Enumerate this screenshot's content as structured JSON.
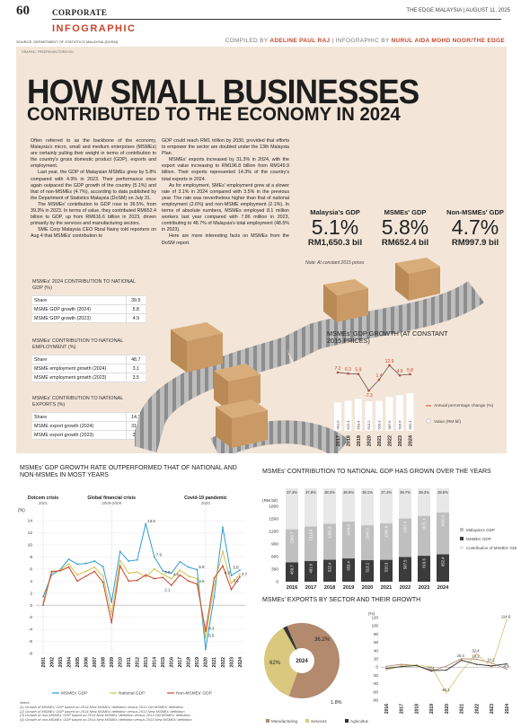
{
  "header": {
    "page_number": "60",
    "section": "CORPORATE",
    "publication": "THE EDGE MALAYSIA | AUGUST 11, 2025",
    "infographic_tag": "INFOGRAPHIC",
    "source": "SOURCE: DEPARTMENT OF STATISTICS MALAYSIA (DOSM)",
    "credit_prefix": "COMPILED BY",
    "credit_author": "ADELINE PAUL RAJ",
    "credit_mid": "| INFOGRAPHIC BY",
    "credit_designer": "NURUL AIDA MOHD NOOR/THE EDGE",
    "graphic_credit": "GRAPHIC: FREEPIK/VECTOR4YOU"
  },
  "title": {
    "line1": "HOW SMALL BUSINESSES",
    "line2": "CONTRIBUTED TO THE ECONOMY IN 2024"
  },
  "body": {
    "col1": [
      "Often referred to as the backbone of the economy, Malaysia's micro, small and medium enterprises (MSMEs) are certainly pulling their weight in terms of contribution to the country's gross domestic product (GDP), exports and employment.",
      "Last year, the GDP of Malaysian MSMEs grew by 5.8% compared with 4.9% in 2023. Their performance once again outpaced the GDP growth of the country (5.1%) and that of non-MSMEs (4.7%), according to data published by the Department of Statistics Malaysia (DoSM) on July 31.",
      "The MSMEs' contribution to GDP rose to 39.5%, from 39.3% in 2023. In terms of value, they contributed RM652.4 billion to GDP, up from RM616.6 billion in 2023, driven primarily by the services and manufacturing sectors.",
      "SME Corp Malaysia CEO Rizal Nainy told reporters on Aug 4 that MSMEs' contribution to"
    ],
    "col2": [
      "GDP could reach RM1 trillion by 2030, provided that efforts to empower the sector are doubled under the 13th Malaysia Plan.",
      "MSMEs' exports increased by 31.3% in 2024, with the export value increasing to RM196.8 billion from RM149.9 billion. Their exports represented 14.3% of the country's total exports in 2024.",
      "As for employment, SMEs' employment grew at a slower rate of 3.1% in 2024 compared with 3.5% in the previous year. The rate was nevertheless higher than that of national employment (2.6%) and non-MSME employment (2.1%). In terms of absolute numbers, MSMEs employed 8.1 million workers last year compared with 7.86 million in 2023, contributing to 48.7% of Malaysia's total employment (48.5% in 2023).",
      "Here are more interesting facts on MSMEs from the DoSM report."
    ]
  },
  "gdp_boxes": [
    {
      "label": "Malaysia's GDP",
      "pct": "5.1%",
      "amount": "RM1,650.3 bil"
    },
    {
      "label": "MSMEs' GDP",
      "pct": "5.8%",
      "amount": "RM652.4 bil"
    },
    {
      "label": "Non-MSMEs' GDP",
      "pct": "4.7%",
      "amount": "RM997.9 bil"
    }
  ],
  "gdp_note": "Note: At constant 2015 prices",
  "tables": [
    {
      "title": "MSMEs' 2024 CONTRIBUTION TO NATIONAL GDP (%)",
      "rows": [
        [
          "Share",
          "39.5"
        ],
        [
          "MSME GDP growth (2024)",
          "5.8"
        ],
        [
          "MSME GDP growth (2023)",
          "4.9"
        ]
      ]
    },
    {
      "title": "MSMEs' CONTRIBUTION TO NATIONAL EMPLOYMENT (%)",
      "rows": [
        [
          "Share",
          "48.7"
        ],
        [
          "MSME employment growth (2024)",
          "3.1"
        ],
        [
          "MSME employment growth (2023)",
          "3.5"
        ]
      ]
    },
    {
      "title": "MSMEs' CONTRIBUTION TO NATIONAL EXPORTS (%)",
      "rows": [
        [
          "Share",
          "14.3"
        ],
        [
          "MSME export growth (2024)",
          "31.3"
        ],
        [
          "MSME export growth (2023)",
          "3.0"
        ]
      ]
    }
  ],
  "chart_data": [
    {
      "type": "bar",
      "title": "MSMEs' GDP GROWTH (AT CONSTANT 2015 PRICES)",
      "categories": [
        "2017",
        "2018",
        "2019",
        "2020",
        "2021",
        "2022",
        "2023",
        "2024"
      ],
      "series": [
        {
          "name": "Value (RM bil)",
          "values": [
            491.6,
            522.4,
            553.4,
            513.2,
            520.3,
            587.5,
            616.6,
            652.4
          ]
        },
        {
          "name": "Annual percentage change (%)",
          "values": [
            7.2,
            6.3,
            5.9,
            -7.3,
            1.4,
            12.9,
            4.9,
            5.8
          ]
        }
      ],
      "legend": [
        "Annual percentage change (%)",
        "Value (RM bil)"
      ]
    },
    {
      "type": "line",
      "title": "MSMEs' GDP GROWTH RATE OUTPERFORMED THAT OF NATIONAL AND NON-MSMEs IN MOST YEARS",
      "ylabel": "(%)",
      "ylim": [
        -8,
        14
      ],
      "yticks": [
        "14",
        "12",
        "10",
        "8",
        "6",
        "4",
        "2",
        "0",
        "-2",
        "-4",
        "-6",
        "-8"
      ],
      "x": [
        "2001",
        "2002",
        "2003",
        "2004",
        "2005",
        "2006",
        "2007",
        "2008",
        "2009",
        "2010",
        "2011",
        "2012",
        "2013",
        "2014",
        "2015",
        "2016",
        "2017",
        "2018",
        "2019",
        "2020",
        "2021",
        "2022",
        "2023",
        "2024"
      ],
      "series": [
        {
          "name": "MSMEs' GDP",
          "values": [
            1.4,
            5.0,
            5.9,
            7.6,
            6.8,
            6.9,
            7.3,
            6.4,
            0.5,
            8.9,
            7.3,
            7.5,
            13.5,
            8.0,
            5.7,
            5.3,
            7.2,
            6.3,
            5.9,
            -7.3,
            1.4,
            12.9,
            4.9,
            5.8
          ]
        },
        {
          "name": "National GDP",
          "values": [
            0.5,
            5.4,
            5.8,
            6.8,
            5.0,
            5.6,
            6.3,
            4.8,
            -1.5,
            7.4,
            5.3,
            5.5,
            4.7,
            6.0,
            5.1,
            4.4,
            5.8,
            4.8,
            4.4,
            -5.5,
            3.3,
            8.9,
            3.6,
            5.1
          ]
        },
        {
          "name": "Non-MSMEs' GDP",
          "values": [
            0.0,
            5.6,
            5.7,
            6.3,
            4.0,
            4.8,
            5.6,
            3.8,
            -2.9,
            6.5,
            4.0,
            4.1,
            5.0,
            4.4,
            4.6,
            3.3,
            5.0,
            4.0,
            3.5,
            -4.3,
            4.5,
            6.5,
            2.6,
            4.7
          ]
        }
      ],
      "annotations": [
        {
          "label": "Dotcom crisis",
          "period": "2001"
        },
        {
          "label": "Global financial crisis",
          "period": "2008-2009"
        },
        {
          "label": "Covid-19 pandemic",
          "period": "2020"
        }
      ],
      "value_labels": [
        "13.5",
        "1",
        "2",
        "7.9",
        "4",
        "5.0",
        "4.6",
        "2.1",
        "1",
        "4",
        "5.9",
        "3",
        "3.5",
        "-4.3",
        "-5.5",
        "4.9",
        "5.8",
        "3.6",
        "4.7"
      ]
    },
    {
      "type": "bar",
      "title": "MSMEs' CONTRIBUTION TO NATIONAL GDP HAS GROWN OVER THE YEARS",
      "ylabel": "(RM bil)",
      "ylim": [
        0,
        1800
      ],
      "yticks": [
        "1800",
        "1500",
        "1200",
        "900",
        "600",
        "300",
        "0"
      ],
      "categories": [
        "2016",
        "2017",
        "2018",
        "2019",
        "2020",
        "2021",
        "2022",
        "2023",
        "2024"
      ],
      "series": [
        {
          "name": "Malaysia's GDP",
          "values": [
            1249.7,
            1316.8,
            1381.8,
            1434.0,
            1345.6,
            1390.9,
            1507.3,
            1571.1,
            1650.3
          ]
        },
        {
          "name": "MSMEs' GDP",
          "values": [
            459.7,
            491.6,
            522.4,
            553.4,
            513.2,
            520.3,
            587.5,
            616.6,
            652.4
          ]
        },
        {
          "name": "Contribution of MSMEs' GDP to Malaysia's GDP",
          "values": [
            37.3,
            37.8,
            38.3,
            38.9,
            38.1,
            37.4,
            39.7,
            39.3,
            39.5
          ],
          "labels": [
            "37.3%",
            "37.8%",
            "38.3%",
            "38.9%",
            "38.1%",
            "37.4%",
            "39.7%",
            "39.3%",
            "39.5%"
          ]
        }
      ]
    },
    {
      "type": "pie",
      "title": "MSMEs' EXPORTS BY SECTOR AND THEIR GROWTH",
      "center_label": "2024",
      "slices": [
        {
          "name": "Manufacturing",
          "value": 62.0,
          "label": "62%",
          "color": "#b38a6e"
        },
        {
          "name": "Services",
          "value": 36.2,
          "label": "36.2%",
          "color": "#d9c87e"
        },
        {
          "name": "Agriculture",
          "value": 1.8,
          "label": "1.8%",
          "color": "#333333"
        }
      ]
    },
    {
      "type": "line",
      "ylabel": "(%)",
      "ylim": [
        -80,
        120
      ],
      "yticks": [
        "120",
        "100",
        "80",
        "60",
        "40",
        "20",
        "0",
        "-20",
        "-40",
        "-60",
        "-80"
      ],
      "x": [
        "2016",
        "2017",
        "2018",
        "2019",
        "2020",
        "2021",
        "2022",
        "2023",
        "2024"
      ],
      "series": [
        {
          "name": "Manufacturing",
          "values": [
            2.0,
            6.7,
            4.1,
            -10.1,
            2.6,
            20.4,
            19.2,
            10.2,
            -4.9
          ]
        },
        {
          "name": "Services",
          "values": [
            -7.2,
            3.4,
            5.2,
            0.8,
            -62.1,
            -9.9,
            32.4,
            -0.7,
            114.6
          ]
        },
        {
          "name": "Agriculture",
          "values": [
            -3.2,
            1.2,
            3.8,
            -8.4,
            -7.3,
            16.7,
            6.7,
            2.9,
            7.9
          ]
        }
      ],
      "value_labels": [
        "114.6",
        "20.4",
        "19.2",
        "32.4",
        "10.2",
        "-4.9",
        "-62.1",
        "-10.1"
      ]
    }
  ],
  "legends": {
    "line": [
      "MSMEs' GDP",
      "National GDP",
      "Non-MSMEs' GDP"
    ],
    "contrib": [
      "Malaysia's GDP",
      "MSMEs' GDP",
      "Contribution of MSMEs' GDP to Malaysia's GDP"
    ],
    "exports": [
      "Manufacturing",
      "Services",
      "Agriculture"
    ]
  },
  "notes": [
    "Notes:",
    "(1) Growth of MSMEs' GDP based on 2014 New MSMEs' definition versus 2013 Old MSMEs' definition",
    "(2) Growth of MSMEs' GDP based on 2014 New MSMEs' definition versus 2013 New MSMEs' definition",
    "(3) Growth of non-MSMEs' GDP based on 2014 New MSMEs' definition versus 2013 Old MSMEs' definition",
    "(4) Growth of non-MSMEs' GDP based on 2014 New MSMEs' definition versus 2013 New MSMEs' definition"
  ],
  "colors": {
    "accent": "#c8452c",
    "msme": "#2f9bd3",
    "national": "#d3c14b",
    "non_msme": "#c8452c",
    "panel_bg": "#f3e6d8",
    "bar_dark": "#3b3b3b",
    "bar_light": "#bfbfbf",
    "manufacturing": "#b38a6e",
    "services": "#d9c87e",
    "agriculture": "#333333"
  }
}
